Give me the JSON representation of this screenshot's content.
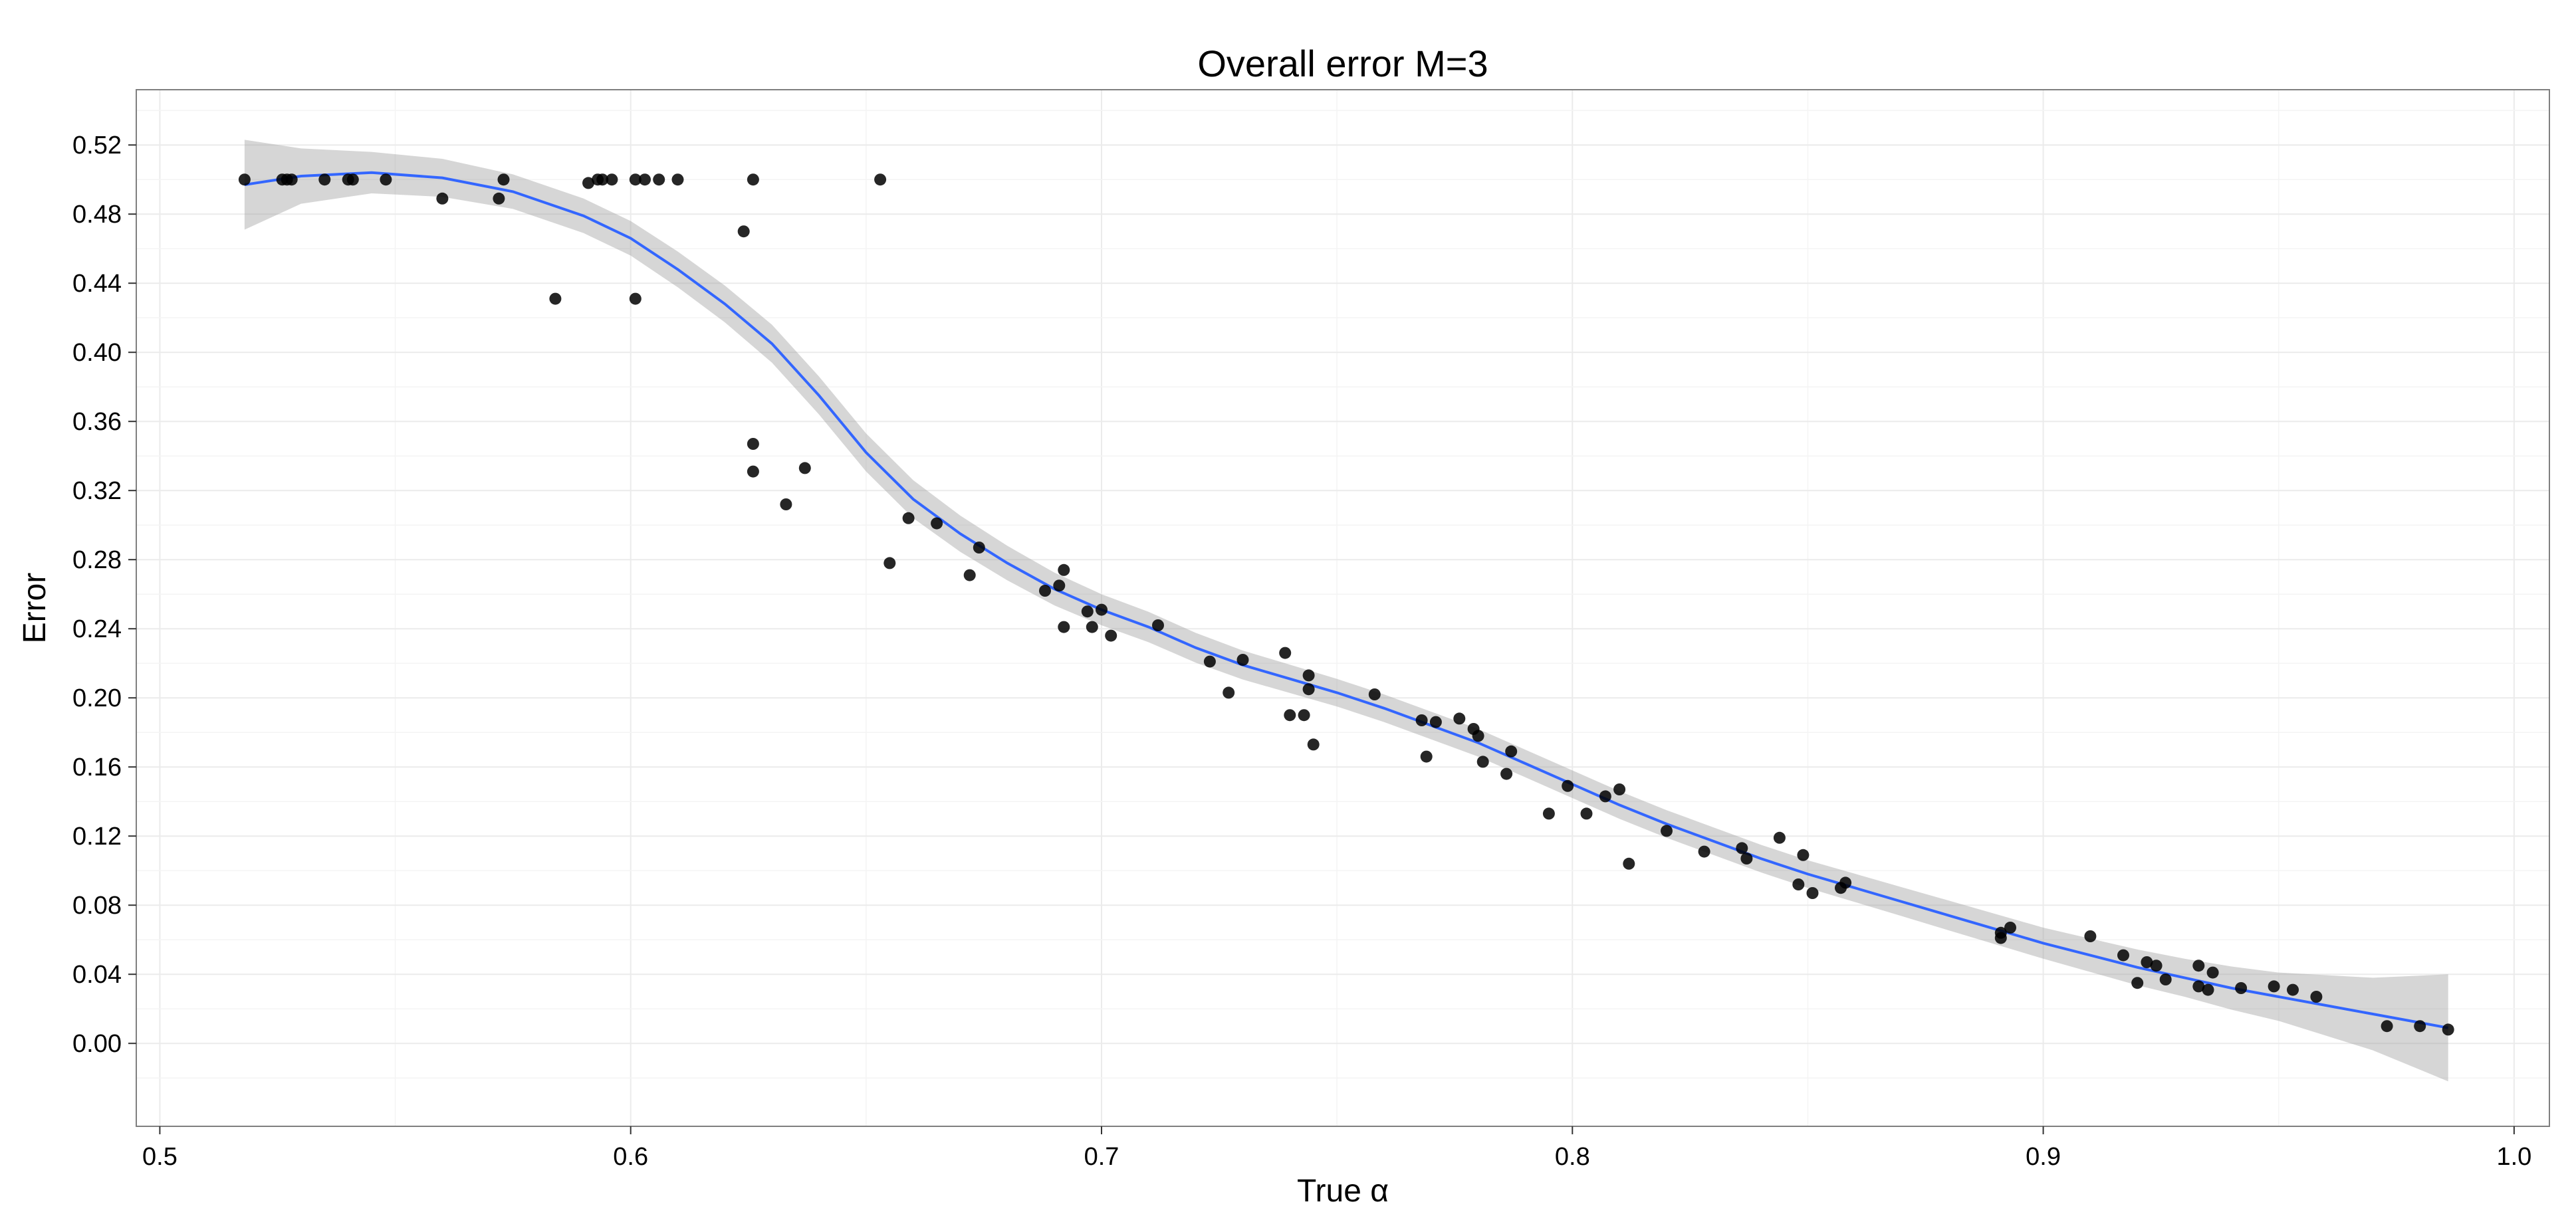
{
  "chart_data": {
    "type": "scatter",
    "title": "Overall error M=3",
    "xlabel": "True α",
    "ylabel": "Error",
    "xlim": [
      0.495,
      1.0075
    ],
    "ylim": [
      -0.048,
      0.552
    ],
    "x_ticks": [
      0.5,
      0.6,
      0.7,
      0.8,
      0.9,
      1.0
    ],
    "x_tick_labels": [
      "0.5",
      "0.6",
      "0.7",
      "0.8",
      "0.9",
      "1.0"
    ],
    "y_ticks": [
      0.0,
      0.04,
      0.08,
      0.12,
      0.16,
      0.2,
      0.24,
      0.28,
      0.32,
      0.36,
      0.4,
      0.44,
      0.48,
      0.52
    ],
    "y_tick_labels": [
      "0.00",
      "0.04",
      "0.08",
      "0.12",
      "0.16",
      "0.20",
      "0.24",
      "0.28",
      "0.32",
      "0.36",
      "0.40",
      "0.44",
      "0.48",
      "0.52"
    ],
    "grid": true,
    "legend": "none",
    "colors": {
      "points": "#000000",
      "smooth_line": "#3366FF",
      "confidence_band": "#999999",
      "panel_border": "#7f7f7f",
      "grid": "#ebebeb",
      "text": "#000000"
    },
    "points": [
      [
        0.518,
        0.5
      ],
      [
        0.526,
        0.5
      ],
      [
        0.527,
        0.5
      ],
      [
        0.528,
        0.5
      ],
      [
        0.535,
        0.5
      ],
      [
        0.54,
        0.5
      ],
      [
        0.541,
        0.5
      ],
      [
        0.548,
        0.5
      ],
      [
        0.56,
        0.489
      ],
      [
        0.572,
        0.489
      ],
      [
        0.573,
        0.5
      ],
      [
        0.584,
        0.431
      ],
      [
        0.591,
        0.498
      ],
      [
        0.593,
        0.5
      ],
      [
        0.594,
        0.5
      ],
      [
        0.596,
        0.5
      ],
      [
        0.601,
        0.431
      ],
      [
        0.601,
        0.5
      ],
      [
        0.603,
        0.5
      ],
      [
        0.606,
        0.5
      ],
      [
        0.61,
        0.5
      ],
      [
        0.624,
        0.47
      ],
      [
        0.626,
        0.5
      ],
      [
        0.626,
        0.347
      ],
      [
        0.626,
        0.331
      ],
      [
        0.637,
        0.333
      ],
      [
        0.633,
        0.312
      ],
      [
        0.653,
        0.5
      ],
      [
        0.655,
        0.278
      ],
      [
        0.659,
        0.304
      ],
      [
        0.665,
        0.301
      ],
      [
        0.672,
        0.271
      ],
      [
        0.674,
        0.287
      ],
      [
        0.688,
        0.262
      ],
      [
        0.692,
        0.274
      ],
      [
        0.691,
        0.265
      ],
      [
        0.692,
        0.241
      ],
      [
        0.697,
        0.25
      ],
      [
        0.698,
        0.241
      ],
      [
        0.7,
        0.251
      ],
      [
        0.702,
        0.236
      ],
      [
        0.712,
        0.242
      ],
      [
        0.723,
        0.221
      ],
      [
        0.727,
        0.203
      ],
      [
        0.73,
        0.222
      ],
      [
        0.739,
        0.226
      ],
      [
        0.74,
        0.19
      ],
      [
        0.743,
        0.19
      ],
      [
        0.744,
        0.213
      ],
      [
        0.744,
        0.205
      ],
      [
        0.745,
        0.173
      ],
      [
        0.758,
        0.202
      ],
      [
        0.768,
        0.187
      ],
      [
        0.769,
        0.166
      ],
      [
        0.771,
        0.186
      ],
      [
        0.776,
        0.188
      ],
      [
        0.779,
        0.182
      ],
      [
        0.78,
        0.178
      ],
      [
        0.781,
        0.163
      ],
      [
        0.786,
        0.156
      ],
      [
        0.787,
        0.169
      ],
      [
        0.795,
        0.133
      ],
      [
        0.799,
        0.149
      ],
      [
        0.803,
        0.133
      ],
      [
        0.807,
        0.143
      ],
      [
        0.81,
        0.147
      ],
      [
        0.812,
        0.104
      ],
      [
        0.82,
        0.123
      ],
      [
        0.828,
        0.111
      ],
      [
        0.836,
        0.113
      ],
      [
        0.837,
        0.107
      ],
      [
        0.844,
        0.119
      ],
      [
        0.848,
        0.092
      ],
      [
        0.849,
        0.109
      ],
      [
        0.851,
        0.087
      ],
      [
        0.857,
        0.09
      ],
      [
        0.858,
        0.093
      ],
      [
        0.891,
        0.064
      ],
      [
        0.891,
        0.061
      ],
      [
        0.893,
        0.067
      ],
      [
        0.91,
        0.062
      ],
      [
        0.917,
        0.051
      ],
      [
        0.92,
        0.035
      ],
      [
        0.922,
        0.047
      ],
      [
        0.924,
        0.045
      ],
      [
        0.926,
        0.037
      ],
      [
        0.933,
        0.033
      ],
      [
        0.933,
        0.045
      ],
      [
        0.935,
        0.031
      ],
      [
        0.936,
        0.041
      ],
      [
        0.942,
        0.032
      ],
      [
        0.949,
        0.033
      ],
      [
        0.953,
        0.031
      ],
      [
        0.958,
        0.027
      ],
      [
        0.973,
        0.01
      ],
      [
        0.98,
        0.01
      ],
      [
        0.986,
        0.008
      ]
    ],
    "smooth": [
      [
        0.518,
        0.497
      ],
      [
        0.53,
        0.502
      ],
      [
        0.545,
        0.504
      ],
      [
        0.56,
        0.501
      ],
      [
        0.575,
        0.493
      ],
      [
        0.59,
        0.479
      ],
      [
        0.6,
        0.466
      ],
      [
        0.61,
        0.448
      ],
      [
        0.62,
        0.428
      ],
      [
        0.63,
        0.405
      ],
      [
        0.64,
        0.375
      ],
      [
        0.65,
        0.342
      ],
      [
        0.66,
        0.315
      ],
      [
        0.67,
        0.295
      ],
      [
        0.68,
        0.278
      ],
      [
        0.69,
        0.263
      ],
      [
        0.7,
        0.251
      ],
      [
        0.71,
        0.241
      ],
      [
        0.72,
        0.229
      ],
      [
        0.73,
        0.219
      ],
      [
        0.74,
        0.211
      ],
      [
        0.75,
        0.203
      ],
      [
        0.76,
        0.194
      ],
      [
        0.77,
        0.184
      ],
      [
        0.78,
        0.174
      ],
      [
        0.79,
        0.162
      ],
      [
        0.8,
        0.15
      ],
      [
        0.81,
        0.138
      ],
      [
        0.82,
        0.127
      ],
      [
        0.83,
        0.117
      ],
      [
        0.84,
        0.107
      ],
      [
        0.85,
        0.098
      ],
      [
        0.86,
        0.09
      ],
      [
        0.87,
        0.082
      ],
      [
        0.88,
        0.074
      ],
      [
        0.89,
        0.066
      ],
      [
        0.9,
        0.058
      ],
      [
        0.91,
        0.051
      ],
      [
        0.92,
        0.044
      ],
      [
        0.93,
        0.038
      ],
      [
        0.94,
        0.032
      ],
      [
        0.95,
        0.027
      ],
      [
        0.96,
        0.022
      ],
      [
        0.97,
        0.017
      ],
      [
        0.98,
        0.012
      ],
      [
        0.986,
        0.009
      ]
    ],
    "band_halfwidth": [
      [
        0.518,
        0.026
      ],
      [
        0.53,
        0.016
      ],
      [
        0.545,
        0.012
      ],
      [
        0.56,
        0.011
      ],
      [
        0.575,
        0.01
      ],
      [
        0.6,
        0.01
      ],
      [
        0.63,
        0.011
      ],
      [
        0.66,
        0.011
      ],
      [
        0.7,
        0.009
      ],
      [
        0.75,
        0.008
      ],
      [
        0.8,
        0.008
      ],
      [
        0.85,
        0.008
      ],
      [
        0.9,
        0.009
      ],
      [
        0.93,
        0.011
      ],
      [
        0.95,
        0.014
      ],
      [
        0.97,
        0.021
      ],
      [
        0.986,
        0.031
      ]
    ]
  }
}
